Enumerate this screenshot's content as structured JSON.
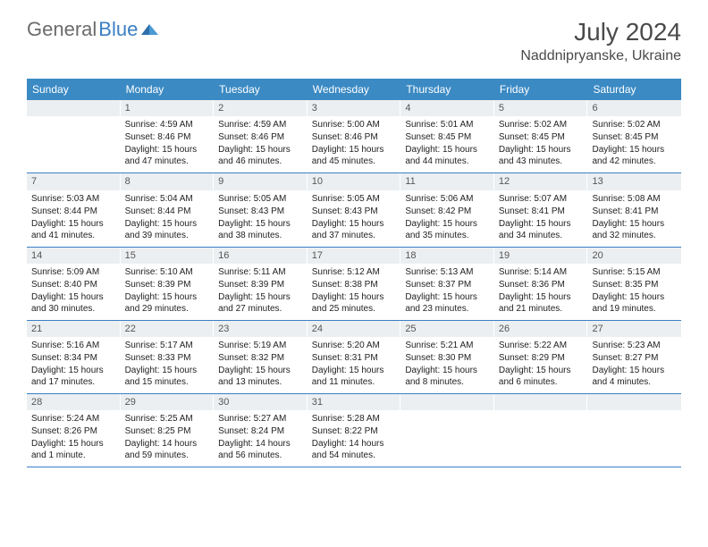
{
  "logo": {
    "text_gray": "General",
    "text_blue": "Blue"
  },
  "title": "July 2024",
  "location": "Naddnipryanske, Ukraine",
  "day_names": [
    "Sunday",
    "Monday",
    "Tuesday",
    "Wednesday",
    "Thursday",
    "Friday",
    "Saturday"
  ],
  "colors": {
    "header_bg": "#3b8ac4",
    "header_text": "#ffffff",
    "daynum_bg": "#eceff1",
    "row_border": "#3b7fc4",
    "text": "#222222",
    "logo_gray": "#6b6b6b",
    "logo_blue": "#3b7fc4"
  },
  "weeks": [
    [
      {
        "num": "",
        "sunrise": "",
        "sunset": "",
        "daylight": ""
      },
      {
        "num": "1",
        "sunrise": "Sunrise: 4:59 AM",
        "sunset": "Sunset: 8:46 PM",
        "daylight": "Daylight: 15 hours and 47 minutes."
      },
      {
        "num": "2",
        "sunrise": "Sunrise: 4:59 AM",
        "sunset": "Sunset: 8:46 PM",
        "daylight": "Daylight: 15 hours and 46 minutes."
      },
      {
        "num": "3",
        "sunrise": "Sunrise: 5:00 AM",
        "sunset": "Sunset: 8:46 PM",
        "daylight": "Daylight: 15 hours and 45 minutes."
      },
      {
        "num": "4",
        "sunrise": "Sunrise: 5:01 AM",
        "sunset": "Sunset: 8:45 PM",
        "daylight": "Daylight: 15 hours and 44 minutes."
      },
      {
        "num": "5",
        "sunrise": "Sunrise: 5:02 AM",
        "sunset": "Sunset: 8:45 PM",
        "daylight": "Daylight: 15 hours and 43 minutes."
      },
      {
        "num": "6",
        "sunrise": "Sunrise: 5:02 AM",
        "sunset": "Sunset: 8:45 PM",
        "daylight": "Daylight: 15 hours and 42 minutes."
      }
    ],
    [
      {
        "num": "7",
        "sunrise": "Sunrise: 5:03 AM",
        "sunset": "Sunset: 8:44 PM",
        "daylight": "Daylight: 15 hours and 41 minutes."
      },
      {
        "num": "8",
        "sunrise": "Sunrise: 5:04 AM",
        "sunset": "Sunset: 8:44 PM",
        "daylight": "Daylight: 15 hours and 39 minutes."
      },
      {
        "num": "9",
        "sunrise": "Sunrise: 5:05 AM",
        "sunset": "Sunset: 8:43 PM",
        "daylight": "Daylight: 15 hours and 38 minutes."
      },
      {
        "num": "10",
        "sunrise": "Sunrise: 5:05 AM",
        "sunset": "Sunset: 8:43 PM",
        "daylight": "Daylight: 15 hours and 37 minutes."
      },
      {
        "num": "11",
        "sunrise": "Sunrise: 5:06 AM",
        "sunset": "Sunset: 8:42 PM",
        "daylight": "Daylight: 15 hours and 35 minutes."
      },
      {
        "num": "12",
        "sunrise": "Sunrise: 5:07 AM",
        "sunset": "Sunset: 8:41 PM",
        "daylight": "Daylight: 15 hours and 34 minutes."
      },
      {
        "num": "13",
        "sunrise": "Sunrise: 5:08 AM",
        "sunset": "Sunset: 8:41 PM",
        "daylight": "Daylight: 15 hours and 32 minutes."
      }
    ],
    [
      {
        "num": "14",
        "sunrise": "Sunrise: 5:09 AM",
        "sunset": "Sunset: 8:40 PM",
        "daylight": "Daylight: 15 hours and 30 minutes."
      },
      {
        "num": "15",
        "sunrise": "Sunrise: 5:10 AM",
        "sunset": "Sunset: 8:39 PM",
        "daylight": "Daylight: 15 hours and 29 minutes."
      },
      {
        "num": "16",
        "sunrise": "Sunrise: 5:11 AM",
        "sunset": "Sunset: 8:39 PM",
        "daylight": "Daylight: 15 hours and 27 minutes."
      },
      {
        "num": "17",
        "sunrise": "Sunrise: 5:12 AM",
        "sunset": "Sunset: 8:38 PM",
        "daylight": "Daylight: 15 hours and 25 minutes."
      },
      {
        "num": "18",
        "sunrise": "Sunrise: 5:13 AM",
        "sunset": "Sunset: 8:37 PM",
        "daylight": "Daylight: 15 hours and 23 minutes."
      },
      {
        "num": "19",
        "sunrise": "Sunrise: 5:14 AM",
        "sunset": "Sunset: 8:36 PM",
        "daylight": "Daylight: 15 hours and 21 minutes."
      },
      {
        "num": "20",
        "sunrise": "Sunrise: 5:15 AM",
        "sunset": "Sunset: 8:35 PM",
        "daylight": "Daylight: 15 hours and 19 minutes."
      }
    ],
    [
      {
        "num": "21",
        "sunrise": "Sunrise: 5:16 AM",
        "sunset": "Sunset: 8:34 PM",
        "daylight": "Daylight: 15 hours and 17 minutes."
      },
      {
        "num": "22",
        "sunrise": "Sunrise: 5:17 AM",
        "sunset": "Sunset: 8:33 PM",
        "daylight": "Daylight: 15 hours and 15 minutes."
      },
      {
        "num": "23",
        "sunrise": "Sunrise: 5:19 AM",
        "sunset": "Sunset: 8:32 PM",
        "daylight": "Daylight: 15 hours and 13 minutes."
      },
      {
        "num": "24",
        "sunrise": "Sunrise: 5:20 AM",
        "sunset": "Sunset: 8:31 PM",
        "daylight": "Daylight: 15 hours and 11 minutes."
      },
      {
        "num": "25",
        "sunrise": "Sunrise: 5:21 AM",
        "sunset": "Sunset: 8:30 PM",
        "daylight": "Daylight: 15 hours and 8 minutes."
      },
      {
        "num": "26",
        "sunrise": "Sunrise: 5:22 AM",
        "sunset": "Sunset: 8:29 PM",
        "daylight": "Daylight: 15 hours and 6 minutes."
      },
      {
        "num": "27",
        "sunrise": "Sunrise: 5:23 AM",
        "sunset": "Sunset: 8:27 PM",
        "daylight": "Daylight: 15 hours and 4 minutes."
      }
    ],
    [
      {
        "num": "28",
        "sunrise": "Sunrise: 5:24 AM",
        "sunset": "Sunset: 8:26 PM",
        "daylight": "Daylight: 15 hours and 1 minute."
      },
      {
        "num": "29",
        "sunrise": "Sunrise: 5:25 AM",
        "sunset": "Sunset: 8:25 PM",
        "daylight": "Daylight: 14 hours and 59 minutes."
      },
      {
        "num": "30",
        "sunrise": "Sunrise: 5:27 AM",
        "sunset": "Sunset: 8:24 PM",
        "daylight": "Daylight: 14 hours and 56 minutes."
      },
      {
        "num": "31",
        "sunrise": "Sunrise: 5:28 AM",
        "sunset": "Sunset: 8:22 PM",
        "daylight": "Daylight: 14 hours and 54 minutes."
      },
      {
        "num": "",
        "sunrise": "",
        "sunset": "",
        "daylight": ""
      },
      {
        "num": "",
        "sunrise": "",
        "sunset": "",
        "daylight": ""
      },
      {
        "num": "",
        "sunrise": "",
        "sunset": "",
        "daylight": ""
      }
    ]
  ]
}
